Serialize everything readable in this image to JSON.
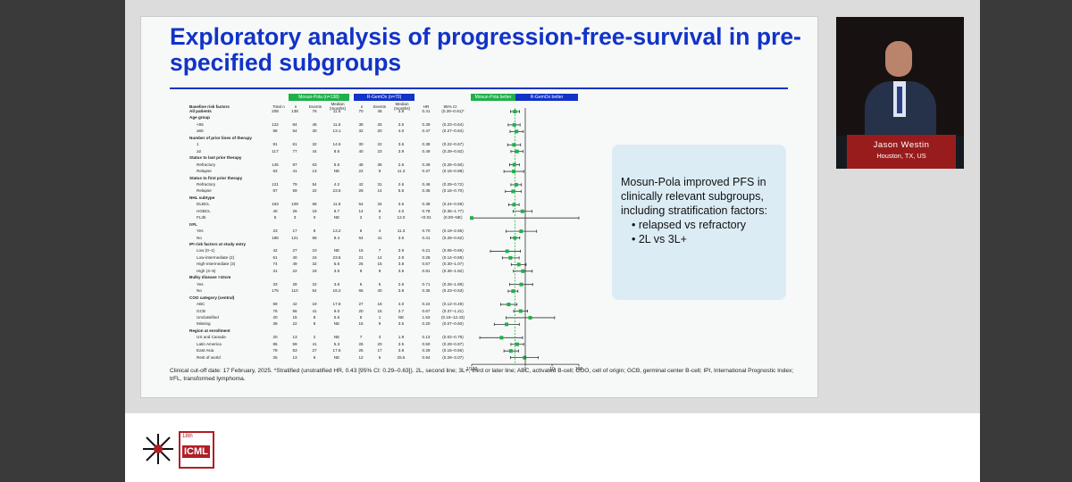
{
  "slide": {
    "title": "Exploratory analysis of progression-free-survival in pre-specified subgroups",
    "header_mosun": "Mosun-Pola (n=138)",
    "header_rgem": "R-GemOx (n=70)",
    "header_mosun_better": "Mosun-Pola better",
    "header_rgem_better": "R-GemOx better",
    "col_baseline": "Baseline risk factors",
    "col_total": "Total n",
    "col_n": "n",
    "col_events": "Events",
    "col_median": "Median (months)",
    "col_hr": "HR",
    "col_ci": "95% CI",
    "axis_ticks": [
      "1/100",
      "1",
      "10",
      "100"
    ],
    "footnote": "Clinical cut-off date: 17 February, 2025. *Stratified (unstratified HR, 0.43 [95% CI: 0.29–0.63]). 2L, second line; 3L+, third or later line; ABC, activated B-cell; COO, cell of origin; GCB, germinal center B-cell; IPI, International Prognostic Index; trFL, transformed lymphoma."
  },
  "rows": [
    {
      "label": "All patients",
      "section": true,
      "total": "208",
      "n1": "138",
      "e1": "76",
      "m1": "11.5",
      "n2": "70",
      "e2": "45",
      "m2": "3.8",
      "hr": "0.41",
      "ci": "(0.28–0.61)*"
    },
    {
      "label": "Age group",
      "section": true,
      "header": true
    },
    {
      "label": "<65",
      "total": "122",
      "n1": "84",
      "e1": "46",
      "m1": "11.5",
      "n2": "38",
      "e2": "25",
      "m2": "3.5",
      "hr": "0.39",
      "ci": "(0.23–0.64)"
    },
    {
      "label": "≥65",
      "total": "86",
      "n1": "54",
      "e1": "30",
      "m1": "13.1",
      "n2": "32",
      "e2": "20",
      "m2": "4.0",
      "hr": "0.47",
      "ci": "(0.27–0.84)"
    },
    {
      "label": "Number of prior lines of therapy",
      "section": true,
      "header": true
    },
    {
      "label": "1",
      "total": "91",
      "n1": "61",
      "e1": "32",
      "m1": "14.5",
      "n2": "30",
      "e2": "22",
      "m2": "3.6",
      "hr": "0.38",
      "ci": "(0.22–0.67)"
    },
    {
      "label": "≥2",
      "total": "117",
      "n1": "77",
      "e1": "44",
      "m1": "8.6",
      "n2": "40",
      "e2": "23",
      "m2": "3.9",
      "hr": "0.49",
      "ci": "(0.29–0.82)"
    },
    {
      "label": "Status to last prior therapy",
      "section": true,
      "header": true
    },
    {
      "label": "Refractory",
      "total": "145",
      "n1": "97",
      "e1": "63",
      "m1": "5.5",
      "n2": "48",
      "e2": "36",
      "m2": "2.6",
      "hr": "0.39",
      "ci": "(0.26–0.60)"
    },
    {
      "label": "Relapse",
      "total": "63",
      "n1": "41",
      "e1": "13",
      "m1": "NE",
      "n2": "22",
      "e2": "9",
      "m2": "11.3",
      "hr": "0.37",
      "ci": "(0.16–0.88)"
    },
    {
      "label": "Status to first prior therapy",
      "section": true,
      "header": true
    },
    {
      "label": "Refractory",
      "total": "121",
      "n1": "79",
      "e1": "54",
      "m1": "4.2",
      "n2": "42",
      "e2": "31",
      "m2": "2.6",
      "hr": "0.46",
      "ci": "(0.29–0.72)"
    },
    {
      "label": "Relapse",
      "total": "87",
      "n1": "59",
      "e1": "22",
      "m1": "23.5",
      "n2": "28",
      "e2": "14",
      "m2": "5.6",
      "hr": "0.35",
      "ci": "(0.18–0.70)"
    },
    {
      "label": "NHL subtype",
      "section": true,
      "header": true
    },
    {
      "label": "DLBCL",
      "total": "163",
      "n1": "109",
      "e1": "58",
      "m1": "11.5",
      "n2": "54",
      "e2": "34",
      "m2": "3.5",
      "hr": "0.38",
      "ci": "(0.24–0.59)"
    },
    {
      "label": "HGBCL",
      "total": "40",
      "n1": "26",
      "e1": "18",
      "m1": "9.7",
      "n2": "14",
      "e2": "9",
      "m2": "4.0",
      "hr": "0.78",
      "ci": "(0.35–1.77)"
    },
    {
      "label": "FL3b",
      "total": "5",
      "n1": "3",
      "e1": "0",
      "m1": "NE",
      "n2": "2",
      "e2": "2",
      "m2": "12.0",
      "hr": "<0.01",
      "ci": "(0.00–NE)"
    },
    {
      "label": "trFL",
      "section": true,
      "header": true
    },
    {
      "label": "Yes",
      "total": "23",
      "n1": "17",
      "e1": "8",
      "m1": "13.2",
      "n2": "6",
      "e2": "4",
      "m2": "11.3",
      "hr": "0.70",
      "ci": "(0.19–2.65)"
    },
    {
      "label": "No",
      "total": "185",
      "n1": "121",
      "e1": "68",
      "m1": "9.4",
      "n2": "64",
      "e2": "41",
      "m2": "3.6",
      "hr": "0.41",
      "ci": "(0.28–0.62)"
    },
    {
      "label": "IPI risk factors at study entry",
      "section": true,
      "header": true
    },
    {
      "label": "Low (0–1)",
      "total": "42",
      "n1": "27",
      "e1": "10",
      "m1": "NE",
      "n2": "15",
      "e2": "7",
      "m2": "3.9",
      "hr": "0.21",
      "ci": "(0.05–0.66)"
    },
    {
      "label": "Low-intermediate (2)",
      "total": "61",
      "n1": "40",
      "e1": "16",
      "m1": "23.5",
      "n2": "21",
      "e2": "14",
      "m2": "2.9",
      "hr": "0.28",
      "ci": "(0.14–0.59)"
    },
    {
      "label": "High-intermediate (3)",
      "total": "74",
      "n1": "49",
      "e1": "32",
      "m1": "5.6",
      "n2": "25",
      "e2": "15",
      "m2": "3.8",
      "hr": "0.57",
      "ci": "(0.30–1.07)"
    },
    {
      "label": "High (4–5)",
      "total": "31",
      "n1": "22",
      "e1": "18",
      "m1": "3.5",
      "n2": "9",
      "e2": "9",
      "m2": "3.5",
      "hr": "0.81",
      "ci": "(0.36–1.82)"
    },
    {
      "label": "Bulky disease >10cm",
      "section": true,
      "header": true
    },
    {
      "label": "Yes",
      "total": "33",
      "n1": "28",
      "e1": "22",
      "m1": "3.6",
      "n2": "5",
      "e2": "5",
      "m2": "2.6",
      "hr": "0.71",
      "ci": "(0.26–1.89)"
    },
    {
      "label": "No",
      "total": "175",
      "n1": "110",
      "e1": "54",
      "m1": "16.2",
      "n2": "65",
      "e2": "40",
      "m2": "3.8",
      "hr": "0.35",
      "ci": "(0.23–0.53)"
    },
    {
      "label": "COO category (central)",
      "section": true,
      "header": true
    },
    {
      "label": "ABC",
      "total": "69",
      "n1": "42",
      "e1": "19",
      "m1": "17.8",
      "n2": "27",
      "e2": "18",
      "m2": "4.0",
      "hr": "0.24",
      "ci": "(0.12–0.49)"
    },
    {
      "label": "GCB",
      "total": "76",
      "n1": "56",
      "e1": "41",
      "m1": "9.0",
      "n2": "20",
      "e2": "15",
      "m2": "3.7",
      "hr": "0.67",
      "ci": "(0.37–1.21)"
    },
    {
      "label": "Unclassified",
      "total": "20",
      "n1": "15",
      "e1": "8",
      "m1": "5.6",
      "n2": "5",
      "e2": "1",
      "m2": "NE",
      "hr": "1.53",
      "ci": "(0.19–12.43)"
    },
    {
      "label": "Missing",
      "total": "38",
      "n1": "22",
      "e1": "8",
      "m1": "NE",
      "n2": "16",
      "e2": "9",
      "m2": "3.5",
      "hr": "0.20",
      "ci": "(0.07–0.60)"
    },
    {
      "label": "Region at enrollment",
      "section": true,
      "header": true
    },
    {
      "label": "US and Canada",
      "total": "20",
      "n1": "13",
      "e1": "2",
      "m1": "NE",
      "n2": "7",
      "e2": "3",
      "m2": "1.9",
      "hr": "0.13",
      "ci": "(0.02–0.79)"
    },
    {
      "label": "Latin America",
      "total": "85",
      "n1": "59",
      "e1": "41",
      "m1": "5.3",
      "n2": "26",
      "e2": "20",
      "m2": "3.5",
      "hr": "0.50",
      "ci": "(0.29–0.87)"
    },
    {
      "label": "East Asia",
      "total": "78",
      "n1": "53",
      "e1": "27",
      "m1": "17.6",
      "n2": "25",
      "e2": "17",
      "m2": "3.8",
      "hr": "0.29",
      "ci": "(0.16–0.56)"
    },
    {
      "label": "Rest of world",
      "total": "25",
      "n1": "13",
      "e1": "6",
      "m1": "NE",
      "n2": "12",
      "e2": "5",
      "m2": "25.5",
      "hr": "0.94",
      "ci": "(0.28–3.07)"
    }
  ],
  "callout": {
    "intro": "Mosun-Pola improved PFS in clinically relevant subgroups, including stratification factors:",
    "bullets": [
      "relapsed vs refractory",
      "2L vs 3L+"
    ]
  },
  "speaker": {
    "name": "Jason Westin",
    "location": "Houston, TX, US"
  },
  "logo": {
    "edition": "18th",
    "name": "ICML"
  },
  "colors": {
    "title_blue": "#1233c8",
    "mosun_green": "#1fb04a",
    "rgem_blue": "#1233c8",
    "nameplate_red": "#991c1c"
  }
}
